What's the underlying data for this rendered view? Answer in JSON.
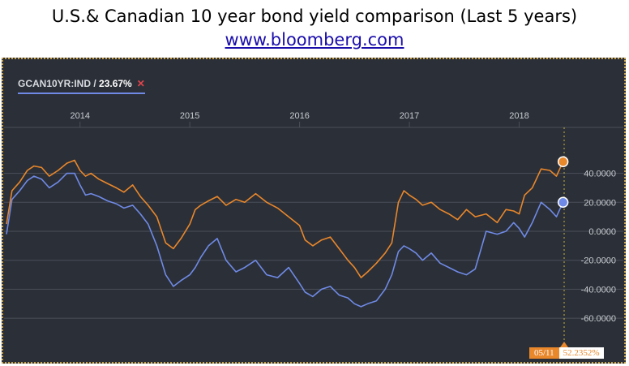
{
  "header": {
    "title": "U.S.& Canadian 10 year bond yield comparison (Last 5 years)",
    "link": "www.bloomberg.com"
  },
  "ticker": {
    "label": "GCAN10YR:IND",
    "sep": " / ",
    "value": "23.67%",
    "close": "✕"
  },
  "cursor": {
    "date": "05/11",
    "value": "52.2352%"
  },
  "colors": {
    "background": "#2b2f37",
    "grid": "#4a4f58",
    "orange_series": "#e9872b",
    "blue_series": "#6f8ae6",
    "text": "#c9ccd2"
  },
  "chart_data": {
    "type": "line",
    "title": "U.S.& Canadian 10 year bond yield comparison (Last 5 years)",
    "xlabel": "",
    "ylabel": "",
    "x_ticks": [
      "2014",
      "2015",
      "2016",
      "2017",
      "2018"
    ],
    "y_ticks": [
      "40.0000",
      "20.0000",
      "0.0000",
      "-20.0000",
      "-40.0000",
      "-60.0000"
    ],
    "y_tick_values": [
      40,
      20,
      0,
      -20,
      -40,
      -60
    ],
    "xlim": [
      2013.33,
      2018.41
    ],
    "ylim": [
      -70,
      70
    ],
    "grid": true,
    "series": [
      {
        "color": "orange",
        "x": [
          2013.33,
          2013.38,
          2013.45,
          2013.52,
          2013.58,
          2013.65,
          2013.72,
          2013.8,
          2013.88,
          2013.95,
          2014.0,
          2014.05,
          2014.1,
          2014.17,
          2014.25,
          2014.33,
          2014.4,
          2014.48,
          2014.55,
          2014.62,
          2014.7,
          2014.78,
          2014.85,
          2014.92,
          2015.0,
          2015.05,
          2015.1,
          2015.17,
          2015.25,
          2015.33,
          2015.42,
          2015.5,
          2015.6,
          2015.7,
          2015.8,
          2015.9,
          2016.0,
          2016.05,
          2016.12,
          2016.2,
          2016.28,
          2016.36,
          2016.44,
          2016.5,
          2016.56,
          2016.62,
          2016.7,
          2016.78,
          2016.84,
          2016.9,
          2016.95,
          2017.0,
          2017.06,
          2017.12,
          2017.2,
          2017.28,
          2017.36,
          2017.44,
          2017.52,
          2017.6,
          2017.7,
          2017.8,
          2017.88,
          2017.95,
          2018.0,
          2018.05,
          2018.12,
          2018.2,
          2018.28,
          2018.34,
          2018.4
        ],
        "values": [
          5,
          28,
          34,
          42,
          45,
          44,
          38,
          42,
          47,
          49,
          42,
          38,
          40,
          36,
          33,
          30,
          27,
          32,
          24,
          18,
          10,
          -8,
          -12,
          -5,
          5,
          15,
          18,
          21,
          24,
          18,
          22,
          20,
          26,
          20,
          16,
          10,
          4,
          -6,
          -10,
          -6,
          -4,
          -12,
          -20,
          -25,
          -32,
          -28,
          -22,
          -15,
          -8,
          20,
          28,
          25,
          22,
          18,
          20,
          15,
          12,
          8,
          15,
          10,
          12,
          6,
          15,
          14,
          12,
          25,
          30,
          43,
          42,
          38,
          48
        ],
        "labels": []
      },
      {
        "color": "blue",
        "x": [
          2013.33,
          2013.38,
          2013.45,
          2013.52,
          2013.58,
          2013.65,
          2013.72,
          2013.8,
          2013.88,
          2013.95,
          2014.0,
          2014.05,
          2014.1,
          2014.17,
          2014.25,
          2014.33,
          2014.4,
          2014.48,
          2014.55,
          2014.62,
          2014.7,
          2014.78,
          2014.85,
          2014.92,
          2015.0,
          2015.05,
          2015.1,
          2015.17,
          2015.25,
          2015.33,
          2015.42,
          2015.5,
          2015.6,
          2015.7,
          2015.8,
          2015.9,
          2016.0,
          2016.05,
          2016.12,
          2016.2,
          2016.28,
          2016.36,
          2016.44,
          2016.5,
          2016.56,
          2016.62,
          2016.7,
          2016.78,
          2016.84,
          2016.9,
          2016.95,
          2017.0,
          2017.06,
          2017.12,
          2017.2,
          2017.28,
          2017.36,
          2017.44,
          2017.52,
          2017.6,
          2017.7,
          2017.8,
          2017.88,
          2017.95,
          2018.0,
          2018.05,
          2018.12,
          2018.2,
          2018.28,
          2018.34,
          2018.4
        ],
        "values": [
          -2,
          22,
          28,
          35,
          38,
          36,
          30,
          34,
          40,
          40,
          32,
          25,
          26,
          24,
          21,
          19,
          16,
          18,
          12,
          5,
          -10,
          -30,
          -38,
          -34,
          -30,
          -25,
          -18,
          -10,
          -5,
          -20,
          -28,
          -25,
          -20,
          -30,
          -32,
          -25,
          -36,
          -42,
          -45,
          -40,
          -38,
          -44,
          -46,
          -50,
          -52,
          -50,
          -48,
          -40,
          -30,
          -14,
          -10,
          -12,
          -15,
          -20,
          -15,
          -22,
          -25,
          -28,
          -30,
          -26,
          0,
          -2,
          0,
          6,
          2,
          -4,
          6,
          20,
          15,
          10,
          20
        ],
        "labels": []
      }
    ]
  }
}
